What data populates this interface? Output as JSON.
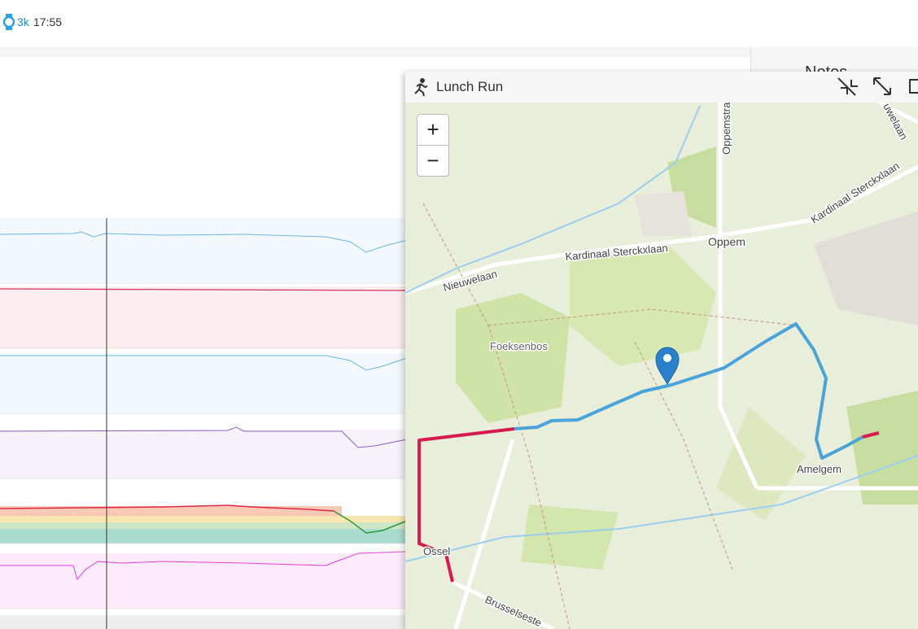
{
  "header": {
    "badge": "3k",
    "time": "17:55"
  },
  "side_panel": {
    "title": "Notes"
  },
  "map_window": {
    "title": "Lunch Run",
    "zoom_in": "+",
    "zoom_out": "−",
    "labels": [
      "Oppemstra",
      "uwelaan",
      "Kardinaal Sterckxlaan",
      "Kardinaal Sterckxlaan",
      "Oppem",
      "Nieuwelaan",
      "Foeksenbos",
      "Amelgem",
      "Ossel",
      "Brusselseste"
    ]
  }
}
